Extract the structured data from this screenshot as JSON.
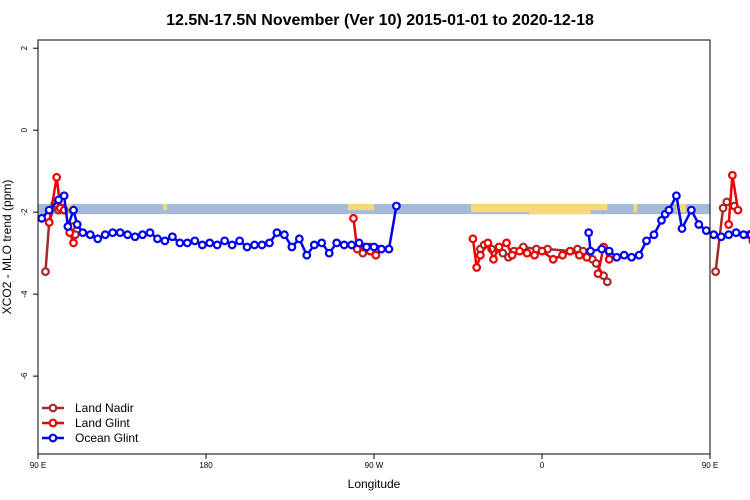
{
  "chart_data": {
    "type": "line",
    "title": "12.5N-17.5N November (Ver 10)   2015-01-01 to 2020-12-18",
    "xlabel": "Longitude",
    "ylabel": "XCO2 - MLO trend (ppm)",
    "xlim": [
      90,
      450
    ],
    "ylim": [
      -7.9,
      2.2
    ],
    "x_ticks": [
      {
        "value": 90,
        "label": "90 E"
      },
      {
        "value": 180,
        "label": "180"
      },
      {
        "value": 270,
        "label": "90 W"
      },
      {
        "value": 360,
        "label": "0"
      },
      {
        "value": 450,
        "label": "90 E"
      },
      {
        "value": 540,
        "label": "180"
      }
    ],
    "y_ticks": [
      {
        "value": 2,
        "label": "2"
      },
      {
        "value": 0,
        "label": "0"
      },
      {
        "value": -2,
        "label": "-2"
      },
      {
        "value": -4,
        "label": "-4"
      },
      {
        "value": -6,
        "label": "-6"
      }
    ],
    "legend_position": "bottom-left",
    "land_band": {
      "y_top": -1.8,
      "y_bottom": -2.05,
      "ocean_color": "#a5b9d9",
      "land_color": "#f5d97a",
      "land_segments": [
        [
          103,
          108,
          -1.95
        ],
        [
          157,
          159,
          -1.95
        ],
        [
          256,
          270,
          -1.95
        ],
        [
          322,
          358,
          -2.0
        ],
        [
          353,
          386,
          -2.05
        ],
        [
          386,
          395,
          -1.95
        ],
        [
          409,
          411,
          -2.0
        ],
        [
          432,
          437,
          -2.0
        ],
        [
          457,
          459,
          -1.95
        ]
      ]
    },
    "series": [
      {
        "name": "Land Nadir",
        "color": "#a52a2a",
        "segments": [
          [
            [
              94,
              -3.45
            ],
            [
              96,
              -2.25
            ],
            [
              99,
              -1.8
            ],
            [
              101,
              -1.95
            ],
            [
              103,
              -1.9
            ]
          ],
          [
            [
              108,
              -2.35
            ],
            [
              110,
              -2.55
            ]
          ],
          [
            [
              264,
              -3.0
            ],
            [
              268,
              -2.85
            ],
            [
              272,
              -2.9
            ]
          ],
          [
            [
              327,
              -2.9
            ],
            [
              329,
              -2.8
            ],
            [
              333,
              -2.9
            ],
            [
              339,
              -3.0
            ],
            [
              342,
              -3.1
            ],
            [
              345,
              -2.95
            ],
            [
              350,
              -2.85
            ],
            [
              357,
              -2.9
            ],
            [
              363,
              -2.9
            ],
            [
              375,
              -2.95
            ],
            [
              379,
              -2.9
            ],
            [
              382,
              -2.95
            ]
          ],
          [
            [
              387,
              -3.15
            ],
            [
              389,
              -3.25
            ],
            [
              393,
              -3.55
            ],
            [
              395,
              -3.7
            ]
          ],
          [
            [
              453,
              -3.45
            ],
            [
              457,
              -1.9
            ],
            [
              459,
              -1.75
            ],
            [
              463,
              -1.85
            ]
          ],
          [
            [
              471,
              -2.55
            ],
            [
              473,
              -2.7
            ]
          ]
        ]
      },
      {
        "name": "Land Glint",
        "color": "#ee0000",
        "segments": [
          [
            [
              96,
              -2.25
            ],
            [
              100,
              -1.15
            ],
            [
              102,
              -1.9
            ],
            [
              104,
              -1.95
            ]
          ],
          [
            [
              107,
              -2.5
            ],
            [
              109,
              -2.75
            ]
          ],
          [
            [
              259,
              -2.15
            ],
            [
              261,
              -2.9
            ],
            [
              265,
              -2.85
            ],
            [
              268,
              -2.95
            ],
            [
              271,
              -3.05
            ]
          ],
          [
            [
              323,
              -2.65
            ],
            [
              325,
              -3.35
            ],
            [
              327,
              -3.05
            ],
            [
              331,
              -2.75
            ],
            [
              334,
              -3.15
            ],
            [
              337,
              -2.85
            ],
            [
              341,
              -2.75
            ],
            [
              344,
              -3.05
            ],
            [
              348,
              -2.95
            ],
            [
              352,
              -3.0
            ],
            [
              356,
              -3.05
            ],
            [
              360,
              -2.95
            ],
            [
              366,
              -3.15
            ],
            [
              371,
              -3.05
            ],
            [
              375,
              -2.95
            ],
            [
              380,
              -3.05
            ],
            [
              384,
              -3.1
            ]
          ],
          [
            [
              390,
              -3.5
            ],
            [
              393,
              -2.85
            ],
            [
              396,
              -3.15
            ]
          ],
          [
            [
              460,
              -2.3
            ],
            [
              462,
              -1.1
            ],
            [
              465,
              -1.95
            ]
          ],
          [
            [
              471,
              -2.55
            ],
            [
              473,
              -2.7
            ]
          ]
        ]
      },
      {
        "name": "Ocean Glint",
        "color": "#0000ee",
        "segments": [
          [
            [
              92,
              -2.15
            ],
            [
              96,
              -1.95
            ],
            [
              101,
              -1.7
            ],
            [
              104,
              -1.6
            ],
            [
              106,
              -2.35
            ],
            [
              109,
              -1.95
            ],
            [
              111,
              -2.3
            ],
            [
              114,
              -2.5
            ],
            [
              118,
              -2.55
            ],
            [
              122,
              -2.65
            ],
            [
              126,
              -2.55
            ],
            [
              130,
              -2.5
            ],
            [
              134,
              -2.5
            ],
            [
              138,
              -2.55
            ],
            [
              142,
              -2.6
            ],
            [
              146,
              -2.55
            ],
            [
              150,
              -2.5
            ],
            [
              154,
              -2.65
            ],
            [
              158,
              -2.7
            ],
            [
              162,
              -2.6
            ],
            [
              166,
              -2.75
            ],
            [
              170,
              -2.75
            ],
            [
              174,
              -2.7
            ],
            [
              178,
              -2.8
            ],
            [
              182,
              -2.75
            ],
            [
              186,
              -2.8
            ],
            [
              190,
              -2.7
            ],
            [
              194,
              -2.8
            ],
            [
              198,
              -2.7
            ],
            [
              202,
              -2.85
            ],
            [
              206,
              -2.8
            ],
            [
              210,
              -2.8
            ],
            [
              214,
              -2.75
            ],
            [
              218,
              -2.5
            ],
            [
              222,
              -2.55
            ],
            [
              226,
              -2.85
            ],
            [
              230,
              -2.65
            ],
            [
              234,
              -3.05
            ],
            [
              238,
              -2.8
            ],
            [
              242,
              -2.75
            ],
            [
              246,
              -3.0
            ],
            [
              250,
              -2.75
            ],
            [
              254,
              -2.8
            ],
            [
              258,
              -2.8
            ],
            [
              262,
              -2.75
            ],
            [
              266,
              -2.85
            ],
            [
              270,
              -2.85
            ],
            [
              274,
              -2.9
            ],
            [
              278,
              -2.9
            ],
            [
              282,
              -1.85
            ]
          ],
          [
            [
              385,
              -2.5
            ],
            [
              386,
              -2.95
            ],
            [
              392,
              -2.9
            ],
            [
              396,
              -2.95
            ],
            [
              400,
              -3.1
            ],
            [
              404,
              -3.05
            ],
            [
              408,
              -3.1
            ],
            [
              412,
              -3.05
            ],
            [
              416,
              -2.7
            ],
            [
              420,
              -2.55
            ],
            [
              424,
              -2.2
            ],
            [
              426,
              -2.05
            ],
            [
              428,
              -1.95
            ],
            [
              432,
              -1.6
            ],
            [
              435,
              -2.4
            ],
            [
              440,
              -1.95
            ],
            [
              444,
              -2.3
            ],
            [
              448,
              -2.45
            ],
            [
              452,
              -2.55
            ],
            [
              456,
              -2.6
            ],
            [
              460,
              -2.55
            ],
            [
              464,
              -2.5
            ],
            [
              468,
              -2.55
            ],
            [
              472,
              -2.55
            ],
            [
              476,
              -2.6
            ],
            [
              480,
              -2.55
            ],
            [
              484,
              -2.6
            ]
          ]
        ]
      }
    ]
  }
}
